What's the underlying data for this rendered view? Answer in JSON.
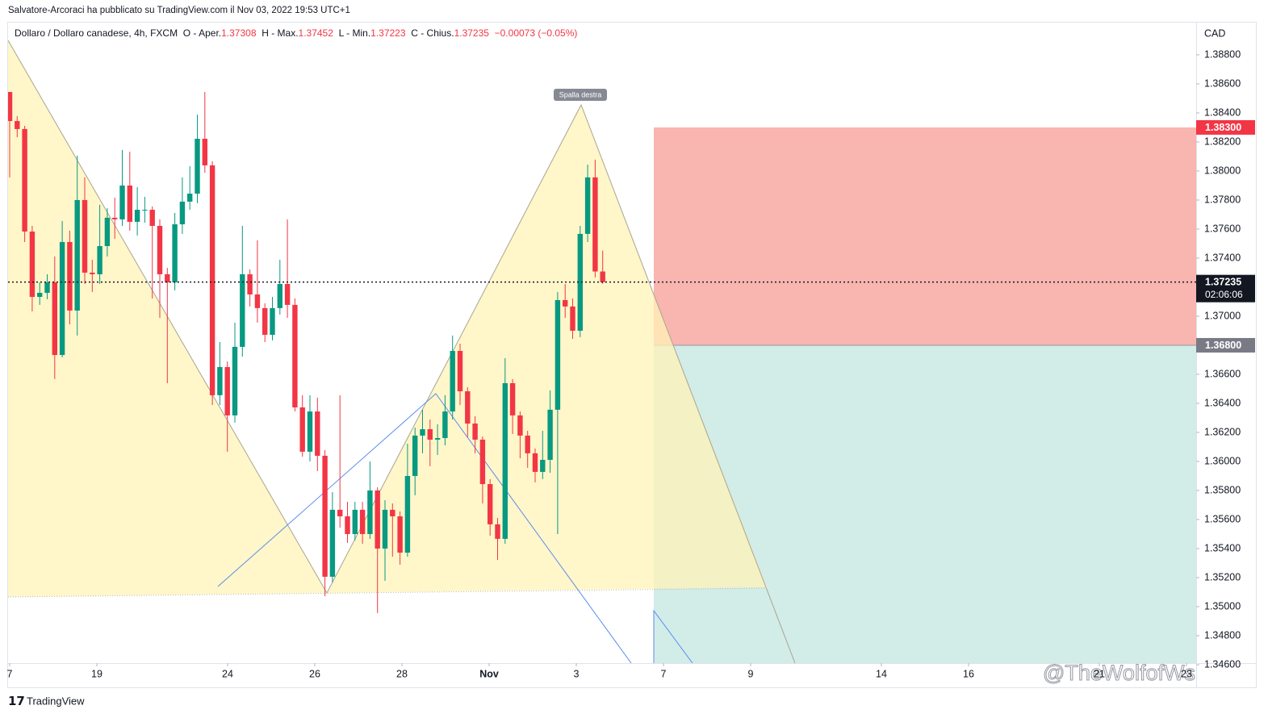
{
  "header": {
    "publisher": "Salvatore-Arcoraci ha pubblicato su TradingView.com il Nov 03, 2022 19:53 UTC+1",
    "symbol": "Dollaro / Dollaro canadese, 4h, FXCM",
    "open_label": "O - Aper.",
    "open": "1.37308",
    "high_label": "H - Max.",
    "high": "1.37452",
    "low_label": "L - Min.",
    "low": "1.37223",
    "close_label": "C - Chius.",
    "close": "1.37235",
    "change": "−0.00073 (−0.05%)"
  },
  "chart_data": {
    "type": "candlestick",
    "currency": "CAD",
    "annotation": "Spalla destra",
    "up_color": "#089981",
    "down_color": "#f23645",
    "open": [
      1.38544,
      1.38344,
      1.38289,
      1.37583,
      1.37133,
      1.37161,
      1.37233,
      1.36733,
      1.37511,
      1.37039,
      1.378,
      1.373,
      1.37289,
      1.37483,
      1.37678,
      1.37667,
      1.379,
      1.3765,
      1.37733,
      1.37733,
      1.37622,
      1.37289,
      1.37233,
      1.37633,
      1.37789,
      1.37844,
      1.38222,
      1.38039,
      1.36456,
      1.3665,
      1.36317,
      1.36789,
      1.37289,
      1.3715,
      1.37056,
      1.36872,
      1.37056,
      1.37222,
      1.37078,
      1.36372,
      1.36067,
      1.36344,
      1.36039,
      1.35206,
      1.35667,
      1.35622,
      1.355,
      1.35667,
      1.355,
      1.358,
      1.354,
      1.35667,
      1.35622,
      1.35372,
      1.359,
      1.36178,
      1.36222,
      1.3615,
      1.36161,
      1.36344,
      1.36761,
      1.36483,
      1.36261,
      1.3615,
      1.35844,
      1.35567,
      1.35467,
      1.36539,
      1.36317,
      1.36178,
      1.36056,
      1.35928,
      1.36011,
      1.36356,
      1.37111,
      1.37067,
      1.369,
      1.37567,
      1.37956,
      1.37308
    ],
    "high": [
      1.38544,
      1.38378,
      1.38311,
      1.37622,
      1.37233,
      1.37289,
      1.37411,
      1.37656,
      1.37589,
      1.38106,
      1.37956,
      1.37389,
      1.37767,
      1.37744,
      1.37817,
      1.38144,
      1.38133,
      1.37889,
      1.37822,
      1.37756,
      1.37667,
      1.37333,
      1.37711,
      1.37956,
      1.38033,
      1.38389,
      1.38544,
      1.38067,
      1.36822,
      1.36689,
      1.36956,
      1.37622,
      1.37322,
      1.37522,
      1.37089,
      1.37133,
      1.37389,
      1.37667,
      1.37122,
      1.36456,
      1.36456,
      1.36439,
      1.36078,
      1.35789,
      1.36456,
      1.35722,
      1.35722,
      1.35722,
      1.36,
      1.35822,
      1.35733,
      1.35711,
      1.35656,
      1.36122,
      1.36233,
      1.36356,
      1.36289,
      1.36256,
      1.36456,
      1.36867,
      1.36811,
      1.36511,
      1.36311,
      1.36172,
      1.35878,
      1.35611,
      1.36711,
      1.36567,
      1.36344,
      1.36211,
      1.36089,
      1.36211,
      1.36489,
      1.37167,
      1.37222,
      1.37122,
      1.37622,
      1.38044,
      1.38078,
      1.37452
    ],
    "low": [
      1.37956,
      1.38233,
      1.37511,
      1.37033,
      1.37078,
      1.37117,
      1.36567,
      1.36717,
      1.36944,
      1.36867,
      1.37222,
      1.37167,
      1.37222,
      1.37411,
      1.37533,
      1.37622,
      1.37589,
      1.37556,
      1.37644,
      1.37122,
      1.36989,
      1.36539,
      1.37178,
      1.37567,
      1.37733,
      1.37778,
      1.37989,
      1.36389,
      1.36389,
      1.36067,
      1.36267,
      1.36722,
      1.37067,
      1.36956,
      1.36822,
      1.36833,
      1.37011,
      1.36989,
      1.36344,
      1.36033,
      1.36,
      1.35933,
      1.35072,
      1.35167,
      1.35544,
      1.35439,
      1.35456,
      1.35433,
      1.35467,
      1.34956,
      1.35178,
      1.35344,
      1.35289,
      1.35344,
      1.35767,
      1.36056,
      1.35967,
      1.36044,
      1.36111,
      1.36289,
      1.36389,
      1.36167,
      1.36056,
      1.35711,
      1.35489,
      1.35322,
      1.35433,
      1.36189,
      1.36022,
      1.35956,
      1.35856,
      1.35878,
      1.35922,
      1.355,
      1.36989,
      1.36844,
      1.36856,
      1.37511,
      1.37267,
      1.37223
    ],
    "close": [
      1.38344,
      1.38289,
      1.37583,
      1.37133,
      1.37161,
      1.37233,
      1.36733,
      1.37511,
      1.37039,
      1.378,
      1.373,
      1.37289,
      1.37483,
      1.37678,
      1.37667,
      1.379,
      1.3765,
      1.37733,
      1.37733,
      1.37622,
      1.37289,
      1.37233,
      1.37633,
      1.37789,
      1.37844,
      1.38222,
      1.38039,
      1.36456,
      1.3665,
      1.36317,
      1.36789,
      1.37289,
      1.3715,
      1.37056,
      1.36872,
      1.37056,
      1.37222,
      1.37078,
      1.36372,
      1.36067,
      1.36344,
      1.36039,
      1.35206,
      1.35667,
      1.35622,
      1.355,
      1.35667,
      1.355,
      1.358,
      1.354,
      1.35667,
      1.35622,
      1.35372,
      1.359,
      1.36178,
      1.36222,
      1.3615,
      1.36161,
      1.36344,
      1.36761,
      1.36483,
      1.36261,
      1.3615,
      1.35844,
      1.35567,
      1.35467,
      1.36539,
      1.36317,
      1.36178,
      1.36056,
      1.35928,
      1.36011,
      1.36356,
      1.37111,
      1.37067,
      1.369,
      1.37567,
      1.37956,
      1.37308,
      1.37235
    ],
    "ylim": [
      1.34611,
      1.39022
    ],
    "yticks": [
      {
        "value": 1.346,
        "label": "1.34600"
      },
      {
        "value": 1.348,
        "label": "1.34800"
      },
      {
        "value": 1.35,
        "label": "1.35000"
      },
      {
        "value": 1.352,
        "label": "1.35200"
      },
      {
        "value": 1.354,
        "label": "1.35400"
      },
      {
        "value": 1.356,
        "label": "1.35600"
      },
      {
        "value": 1.358,
        "label": "1.35800"
      },
      {
        "value": 1.36,
        "label": "1.36000"
      },
      {
        "value": 1.362,
        "label": "1.36200"
      },
      {
        "value": 1.364,
        "label": "1.36400"
      },
      {
        "value": 1.366,
        "label": "1.36600"
      },
      {
        "value": 1.368,
        "label": "1.36800"
      },
      {
        "value": 1.37,
        "label": "1.37000"
      },
      {
        "value": 1.372,
        "label": "1.37200"
      },
      {
        "value": 1.374,
        "label": "1.37400"
      },
      {
        "value": 1.376,
        "label": "1.37600"
      },
      {
        "value": 1.378,
        "label": "1.37800"
      },
      {
        "value": 1.38,
        "label": "1.38000"
      },
      {
        "value": 1.382,
        "label": "1.38200"
      },
      {
        "value": 1.384,
        "label": "1.38400"
      },
      {
        "value": 1.386,
        "label": "1.38600"
      },
      {
        "value": 1.388,
        "label": "1.38800"
      }
    ],
    "xlim": [
      -0.037,
      27.222
    ],
    "xticks": [
      {
        "value": 0,
        "label": "7"
      },
      {
        "value": 2,
        "label": "19"
      },
      {
        "value": 5,
        "label": "24"
      },
      {
        "value": 7,
        "label": "26"
      },
      {
        "value": 9,
        "label": "28"
      },
      {
        "value": 11,
        "label": "Nov"
      },
      {
        "value": 13,
        "label": "3"
      },
      {
        "value": 15,
        "label": "7"
      },
      {
        "value": 17,
        "label": "9"
      },
      {
        "value": 20,
        "label": "14"
      },
      {
        "value": 22,
        "label": "16"
      },
      {
        "value": 25,
        "label": "21"
      },
      {
        "value": 27,
        "label": "23"
      }
    ],
    "levels": [
      {
        "value": 1.383,
        "label": "1.38300",
        "color": "#f23645"
      },
      {
        "value": 1.37235,
        "label": "1.37235",
        "color": "#131722"
      },
      {
        "value": 1.368,
        "label": "1.36800",
        "color": "#787b86"
      }
    ],
    "countdown": "02:06:06"
  },
  "footer": {
    "brand": "TradingView",
    "watermark": "@TheWolfofWs"
  }
}
